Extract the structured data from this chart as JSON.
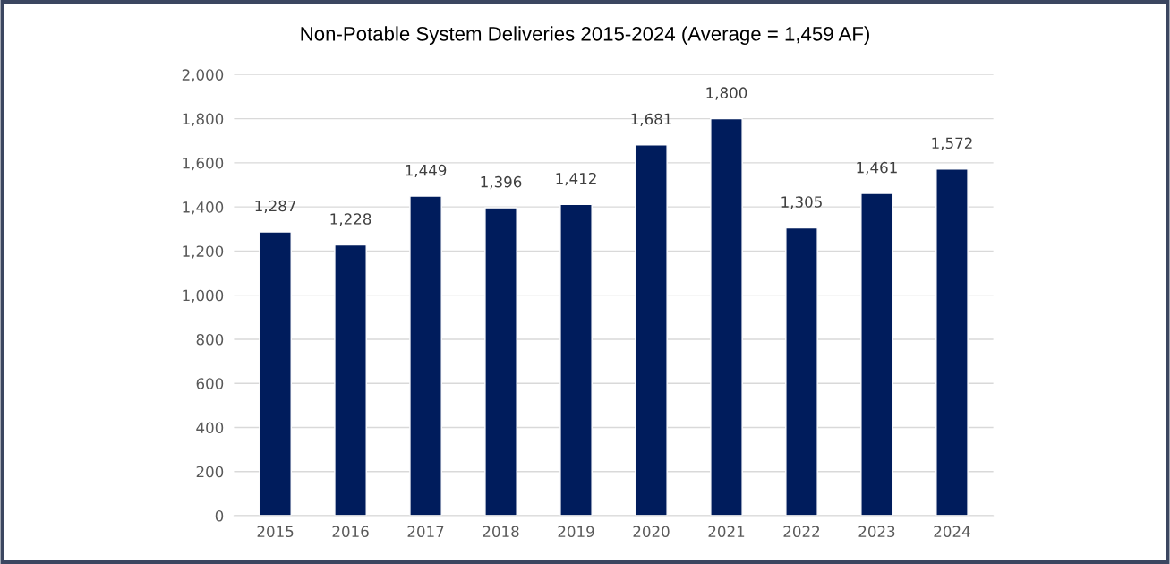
{
  "chart_data": {
    "type": "bar",
    "title": "Non-Potable System Deliveries 2015-2024 (Average = 1,459 AF)",
    "categories": [
      "2015",
      "2016",
      "2017",
      "2018",
      "2019",
      "2020",
      "2021",
      "2022",
      "2023",
      "2024"
    ],
    "values": [
      1287,
      1228,
      1449,
      1396,
      1412,
      1681,
      1800,
      1305,
      1461,
      1572
    ],
    "color": "#001c5c",
    "ylim": [
      0,
      2000
    ],
    "yticks": [
      {
        "value": 0,
        "label": "0"
      },
      {
        "value": 200,
        "label": "200"
      },
      {
        "value": 400,
        "label": "400"
      },
      {
        "value": 600,
        "label": "600"
      },
      {
        "value": 800,
        "label": "800"
      },
      {
        "value": 1000,
        "label": "1,000"
      },
      {
        "value": 1200,
        "label": "1,200"
      },
      {
        "value": 1400,
        "label": "1,400"
      },
      {
        "value": 1600,
        "label": "1,600"
      },
      {
        "value": 1800,
        "label": "1,800"
      },
      {
        "value": 2000,
        "label": "2,000"
      }
    ],
    "value_labels": [
      "1,287",
      "1,228",
      "1,449",
      "1,396",
      "1,412",
      "1,681",
      "1,800",
      "1,305",
      "1,461",
      "1,572"
    ],
    "grid": "y",
    "legend": false
  }
}
